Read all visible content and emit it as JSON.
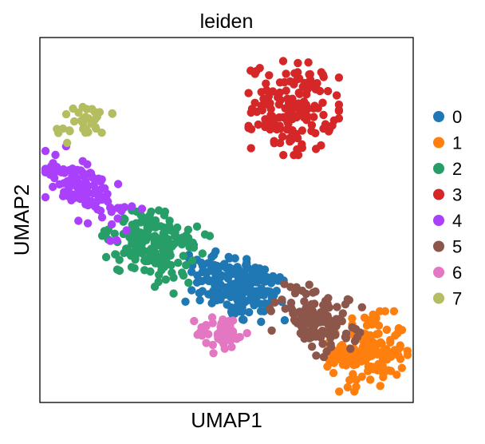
{
  "chart_data": {
    "type": "scatter",
    "title": "leiden",
    "xlabel": "UMAP1",
    "ylabel": "UMAP2",
    "grid": false,
    "legend_position": "right",
    "xticks": [],
    "yticks": [],
    "xlim": [
      0,
      100
    ],
    "ylim": [
      0,
      100
    ],
    "series": [
      {
        "name": "0",
        "color": "#1f77b4",
        "n_points": 190,
        "center": [
          53,
          32
        ],
        "spread": [
          14,
          9
        ],
        "angle_deg": -25
      },
      {
        "name": "1",
        "color": "#ff7f0e",
        "n_points": 150,
        "center": [
          88,
          14
        ],
        "spread": [
          10,
          10
        ],
        "angle_deg": 0
      },
      {
        "name": "2",
        "color": "#279e68",
        "n_points": 170,
        "center": [
          30,
          43
        ],
        "spread": [
          12,
          9
        ],
        "angle_deg": -25
      },
      {
        "name": "3",
        "color": "#d62728",
        "n_points": 160,
        "center": [
          68,
          81
        ],
        "spread": [
          11,
          12
        ],
        "angle_deg": 0
      },
      {
        "name": "4",
        "color": "#aa40fc",
        "n_points": 110,
        "center": [
          12,
          58
        ],
        "spread": [
          7,
          14
        ],
        "angle_deg": 55
      },
      {
        "name": "5",
        "color": "#8c564b",
        "n_points": 120,
        "center": [
          74,
          23
        ],
        "spread": [
          11,
          8
        ],
        "angle_deg": -30
      },
      {
        "name": "6",
        "color": "#e377c2",
        "n_points": 45,
        "center": [
          49,
          19
        ],
        "spread": [
          7,
          5
        ],
        "angle_deg": 0
      },
      {
        "name": "7",
        "color": "#b5bd61",
        "n_points": 35,
        "center": [
          12,
          77
        ],
        "spread": [
          7,
          5
        ],
        "angle_deg": 20
      }
    ]
  }
}
